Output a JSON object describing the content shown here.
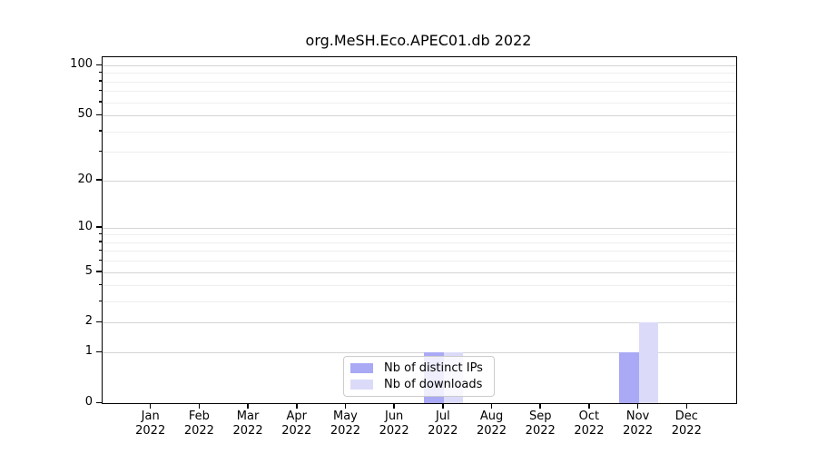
{
  "chart_data": {
    "type": "bar",
    "title": "org.MeSH.Eco.APEC01.db 2022",
    "categories": [
      "Jan",
      "Feb",
      "Mar",
      "Apr",
      "May",
      "Jun",
      "Jul",
      "Aug",
      "Sep",
      "Oct",
      "Nov",
      "Dec"
    ],
    "year": "2022",
    "series": [
      {
        "name": "Nb of distinct IPs",
        "color": "#a9a9f6",
        "values": [
          0,
          0,
          0,
          0,
          0,
          0,
          1,
          0,
          0,
          0,
          1,
          0
        ]
      },
      {
        "name": "Nb of downloads",
        "color": "#dbdbf9",
        "values": [
          0,
          0,
          0,
          0,
          0,
          0,
          1,
          0,
          0,
          0,
          2,
          0
        ]
      }
    ],
    "y_axis": {
      "scale": "log10(1+v)",
      "ticks": [
        0,
        1,
        2,
        5,
        10,
        20,
        50,
        100
      ],
      "minor_ticks": [
        3,
        4,
        6,
        7,
        8,
        9,
        30,
        40,
        60,
        70,
        80,
        90
      ],
      "ymax": 112
    },
    "xlabel": "",
    "ylabel": "",
    "legend": {
      "position": "lower center",
      "labels": [
        "Nb of distinct IPs",
        "Nb of downloads"
      ]
    },
    "grid": {
      "major_color": "#d4d4d4",
      "minor_color": "#eeeeee",
      "on": true
    },
    "colors": {
      "spine": "#000000",
      "background": "#ffffff"
    }
  }
}
